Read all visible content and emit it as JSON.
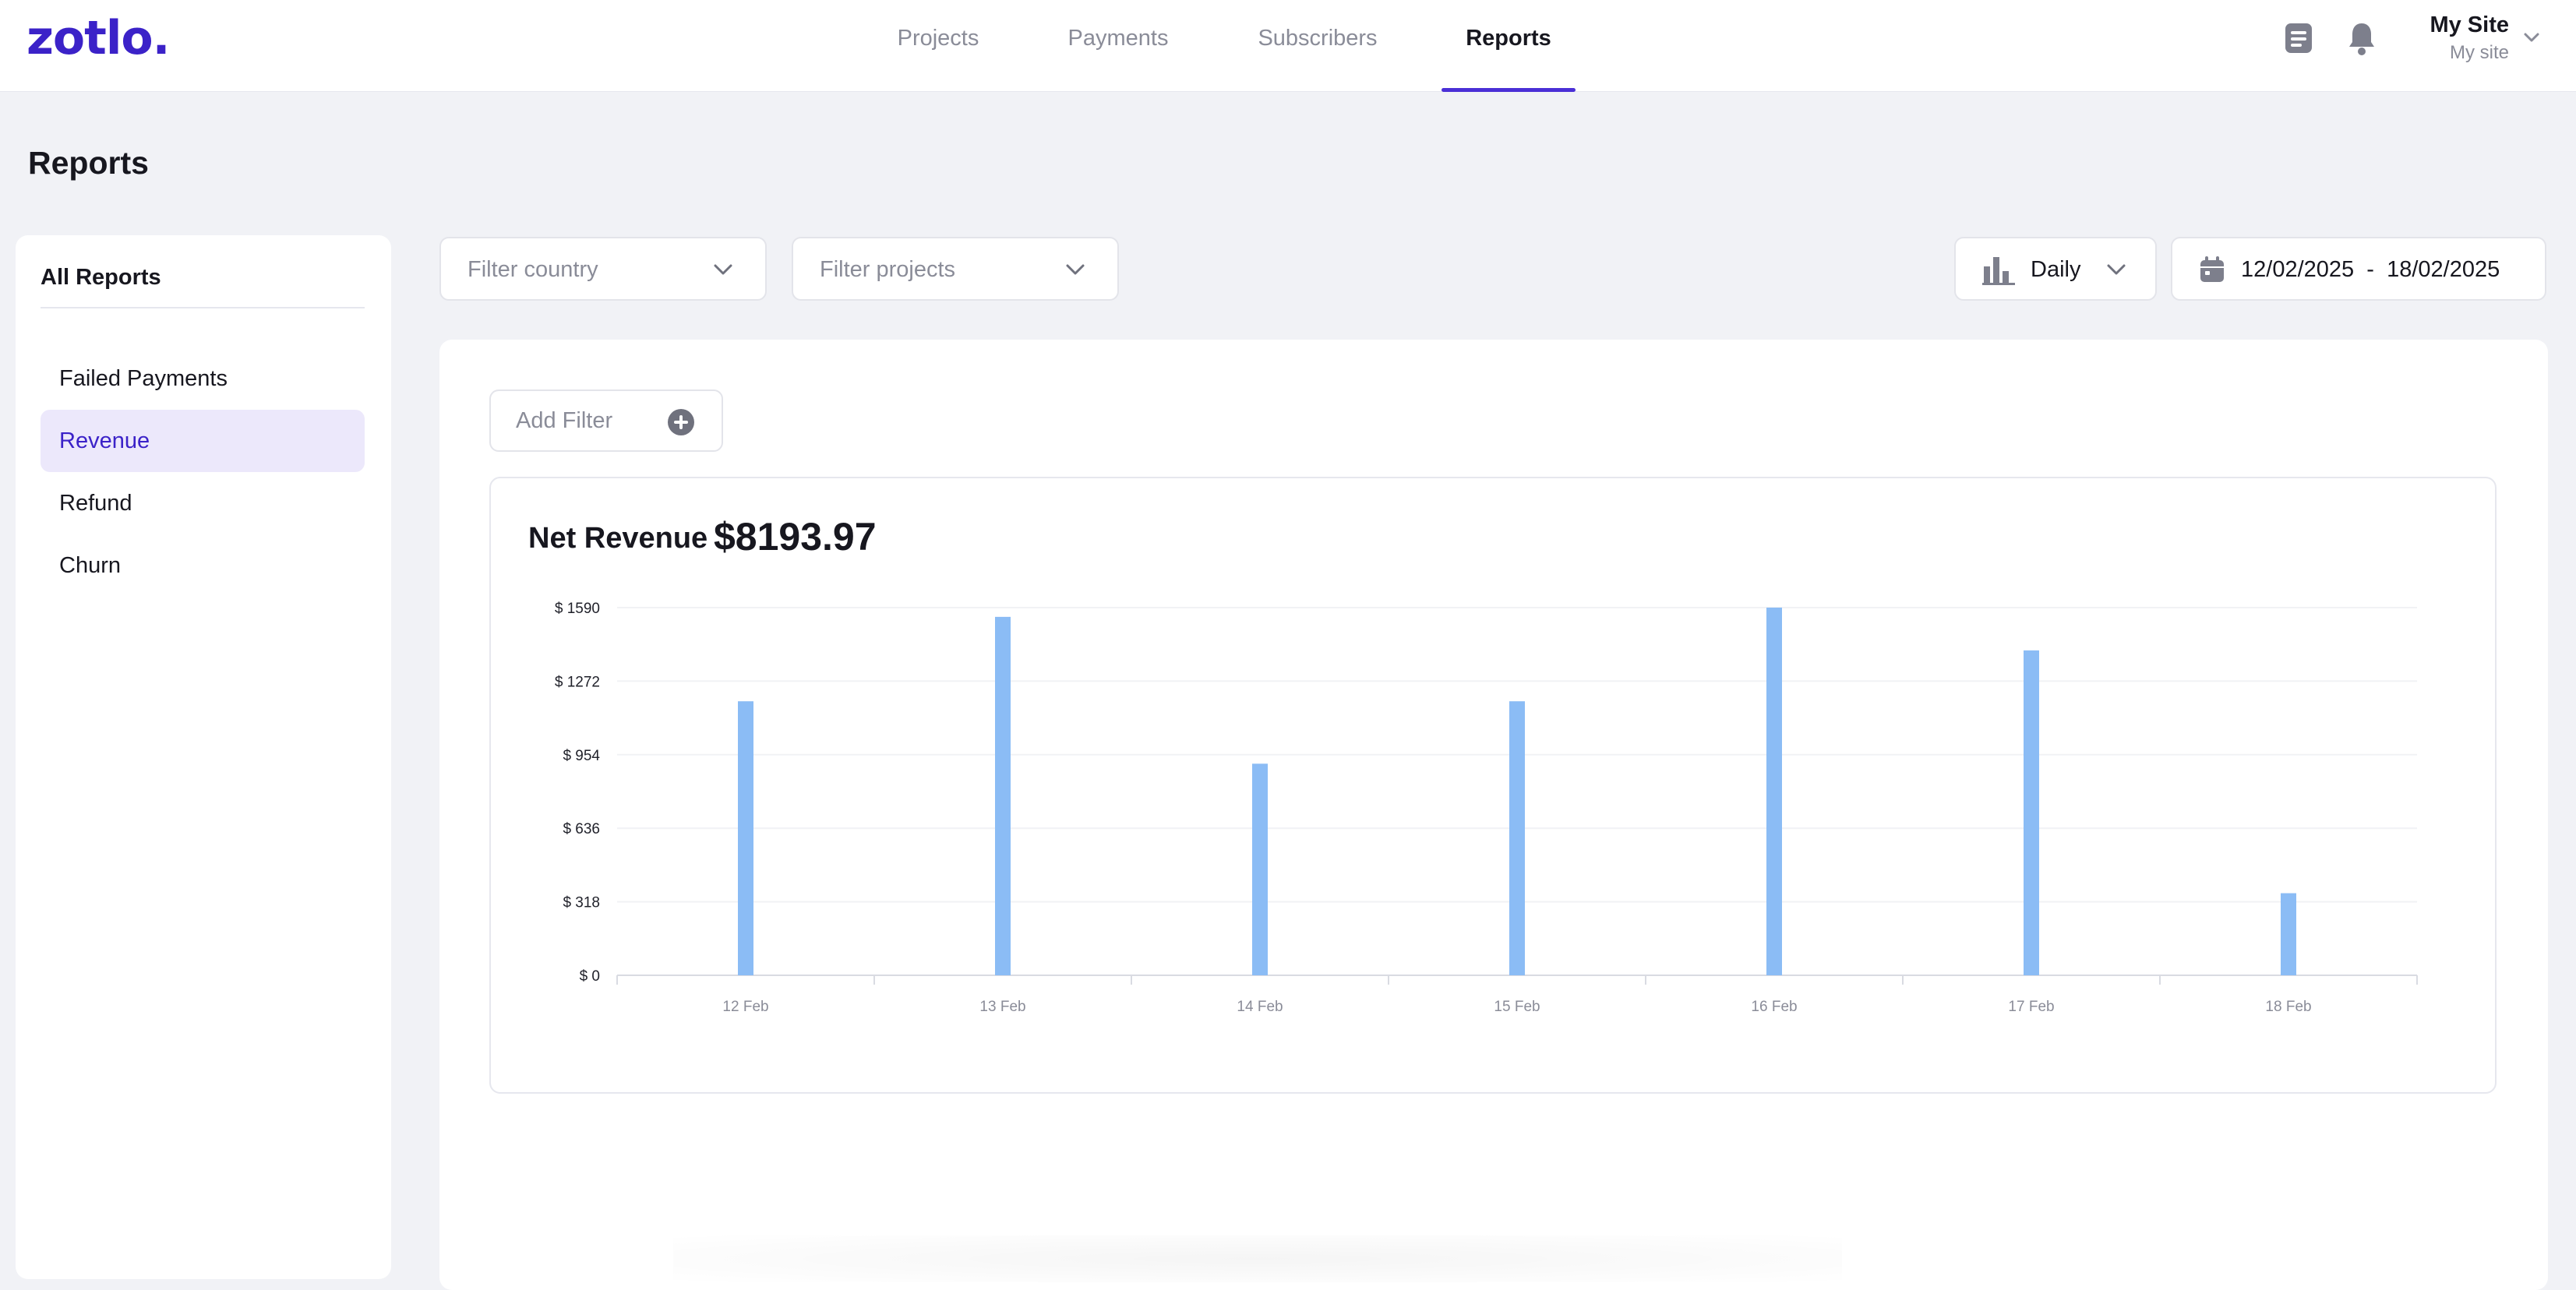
{
  "app": {
    "logo": "zotlo.",
    "brand_color": "#3b22c8"
  },
  "nav": {
    "items": [
      {
        "label": "Projects",
        "active": false
      },
      {
        "label": "Payments",
        "active": false
      },
      {
        "label": "Subscribers",
        "active": false
      },
      {
        "label": "Reports",
        "active": true
      }
    ]
  },
  "header_right": {
    "icons": [
      "document-icon",
      "bell-icon"
    ],
    "site_name": "My Site",
    "site_sub": "My site"
  },
  "page": {
    "title": "Reports"
  },
  "sidebar": {
    "heading": "All Reports",
    "items": [
      {
        "label": "Failed Payments",
        "active": false
      },
      {
        "label": "Revenue",
        "active": true
      },
      {
        "label": "Refund",
        "active": false
      },
      {
        "label": "Churn",
        "active": false
      }
    ]
  },
  "filters": {
    "country_placeholder": "Filter country",
    "projects_placeholder": "Filter projects",
    "interval": "Daily",
    "date_start": "12/02/2025",
    "date_separator": "-",
    "date_end": "18/02/2025",
    "add_filter": "Add Filter"
  },
  "summary": {
    "label": "Net Revenue",
    "value": "$8193.97"
  },
  "chart_data": {
    "type": "bar",
    "categories": [
      "12 Feb",
      "13 Feb",
      "14 Feb",
      "15 Feb",
      "16 Feb",
      "17 Feb",
      "18 Feb"
    ],
    "values": [
      1185,
      1550,
      915,
      1185,
      1590,
      1405,
      355
    ],
    "ylim": [
      0,
      1590
    ],
    "yticks": [
      0,
      318,
      636,
      954,
      1272,
      1590
    ],
    "ytick_labels": [
      "$ 0",
      "$ 318",
      "$ 636",
      "$ 954",
      "$ 1272",
      "$ 1590"
    ],
    "bar_color": "#8bbcf5",
    "grid": true,
    "legend": "none"
  }
}
